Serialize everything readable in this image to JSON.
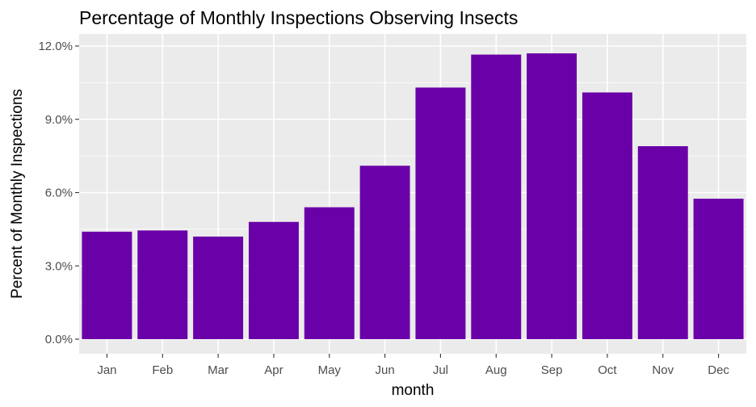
{
  "chart_data": {
    "type": "bar",
    "title": "Percentage of Monthly Inspections Observing Insects",
    "xlabel": "month",
    "ylabel": "Percent of Monthly Inspections",
    "categories": [
      "Jan",
      "Feb",
      "Mar",
      "Apr",
      "May",
      "Jun",
      "Jul",
      "Aug",
      "Sep",
      "Oct",
      "Nov",
      "Dec"
    ],
    "values": [
      4.4,
      4.45,
      4.2,
      4.8,
      5.4,
      7.1,
      10.3,
      11.65,
      11.7,
      10.1,
      7.9,
      5.75
    ],
    "yticks": [
      0,
      3,
      6,
      9,
      12
    ],
    "ytick_labels": [
      "0.0%",
      "3.0%",
      "6.0%",
      "9.0%",
      "12.0%"
    ],
    "ylim": [
      0,
      12.5
    ],
    "grid": true,
    "legend": "none",
    "colors": {
      "bar": "#6a00a8",
      "panel": "#ebebeb",
      "grid": "#ffffff"
    }
  }
}
